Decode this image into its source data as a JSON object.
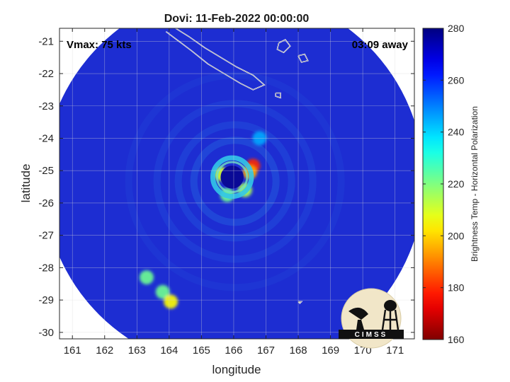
{
  "chart_data": {
    "type": "heatmap",
    "title": "Dovi: 11-Feb-2022 00:00:00",
    "xlabel": "longitude",
    "ylabel": "latitude",
    "xlim": [
      160.6,
      171.6
    ],
    "ylim": [
      -30.2,
      -20.6
    ],
    "xticks": [
      161,
      162,
      163,
      164,
      165,
      166,
      167,
      168,
      169,
      170,
      171
    ],
    "yticks": [
      -21,
      -22,
      -23,
      -24,
      -25,
      -26,
      -27,
      -28,
      -29,
      -30
    ],
    "grid": true,
    "annotations": {
      "vmax": "Vmax: 75 kts",
      "time_offset": "03:09 away"
    },
    "colorbar": {
      "label": "Brightness Temp - Horizontal Polarization",
      "min": 160,
      "max": 280,
      "ticks": [
        160,
        180,
        200,
        220,
        240,
        260,
        280
      ],
      "colormap": "jet"
    },
    "storm_center": {
      "lon": 165.95,
      "lat": -25.2
    },
    "eye_radius_deg": 0.4,
    "swath_center": {
      "lon": 166.0,
      "lat": -25.3
    },
    "swath_radius_deg": 5.9,
    "features": [
      {
        "lon": 166.6,
        "lat": -24.85,
        "value": 180
      },
      {
        "lon": 166.5,
        "lat": -25.05,
        "value": 195
      },
      {
        "lon": 165.6,
        "lat": -25.1,
        "value": 210
      },
      {
        "lon": 166.35,
        "lat": -25.6,
        "value": 215
      },
      {
        "lon": 165.8,
        "lat": -25.75,
        "value": 222
      },
      {
        "lon": 163.3,
        "lat": -28.3,
        "value": 222
      },
      {
        "lon": 163.8,
        "lat": -28.75,
        "value": 222
      },
      {
        "lon": 164.05,
        "lat": -29.05,
        "value": 205
      },
      {
        "lon": 166.8,
        "lat": -24.0,
        "value": 245
      }
    ],
    "coastlines": [
      [
        [
          163.9,
          -20.7
        ],
        [
          164.3,
          -21.0
        ],
        [
          164.7,
          -21.3
        ],
        [
          165.2,
          -21.7
        ],
        [
          165.7,
          -22.0
        ],
        [
          166.2,
          -22.3
        ],
        [
          166.6,
          -22.5
        ],
        [
          166.95,
          -22.35
        ],
        [
          166.6,
          -22.05
        ],
        [
          166.1,
          -21.8
        ],
        [
          165.6,
          -21.5
        ],
        [
          165.1,
          -21.2
        ],
        [
          164.6,
          -20.85
        ],
        [
          164.2,
          -20.6
        ]
      ],
      [
        [
          167.4,
          -21.05
        ],
        [
          167.6,
          -20.95
        ],
        [
          167.75,
          -21.15
        ],
        [
          167.55,
          -21.35
        ],
        [
          167.35,
          -21.25
        ],
        [
          167.4,
          -21.05
        ]
      ],
      [
        [
          168.0,
          -21.45
        ],
        [
          168.2,
          -21.4
        ],
        [
          168.3,
          -21.6
        ],
        [
          168.1,
          -21.65
        ],
        [
          168.0,
          -21.45
        ]
      ],
      [
        [
          167.3,
          -22.6
        ],
        [
          167.45,
          -22.6
        ],
        [
          167.45,
          -22.75
        ],
        [
          167.3,
          -22.7
        ],
        [
          167.3,
          -22.6
        ]
      ],
      [
        [
          168.0,
          -29.05
        ],
        [
          168.1,
          -29.05
        ],
        [
          168.05,
          -29.1
        ],
        [
          168.0,
          -29.05
        ]
      ]
    ]
  },
  "logo": {
    "text": "CIMSS"
  }
}
